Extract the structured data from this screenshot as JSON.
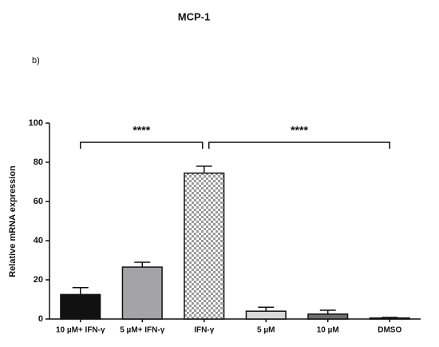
{
  "chart_data": {
    "type": "bar",
    "title": "MCP-1",
    "panel_label": "b)",
    "y_label": "Relative mRNA expression",
    "categories": [
      "10 µM+ IFN-γ",
      "5 µM+ IFN-γ",
      "IFN-γ",
      "5 µM",
      "10 µM",
      "DMSO"
    ],
    "values": [
      12.5,
      26.5,
      74.5,
      4,
      2.5,
      0.5
    ],
    "errors": [
      3.5,
      2.5,
      3.5,
      2,
      2,
      0.3
    ],
    "fills": [
      "#111111",
      "#a3a3a8",
      "checker",
      "#d9d9d9",
      "#6e6e6e",
      "#8a8a8a"
    ],
    "ylim": [
      0,
      100
    ],
    "yticks": [
      0,
      20,
      40,
      60,
      80,
      100
    ],
    "grid": false,
    "annotations": [
      "****",
      "****"
    ]
  }
}
